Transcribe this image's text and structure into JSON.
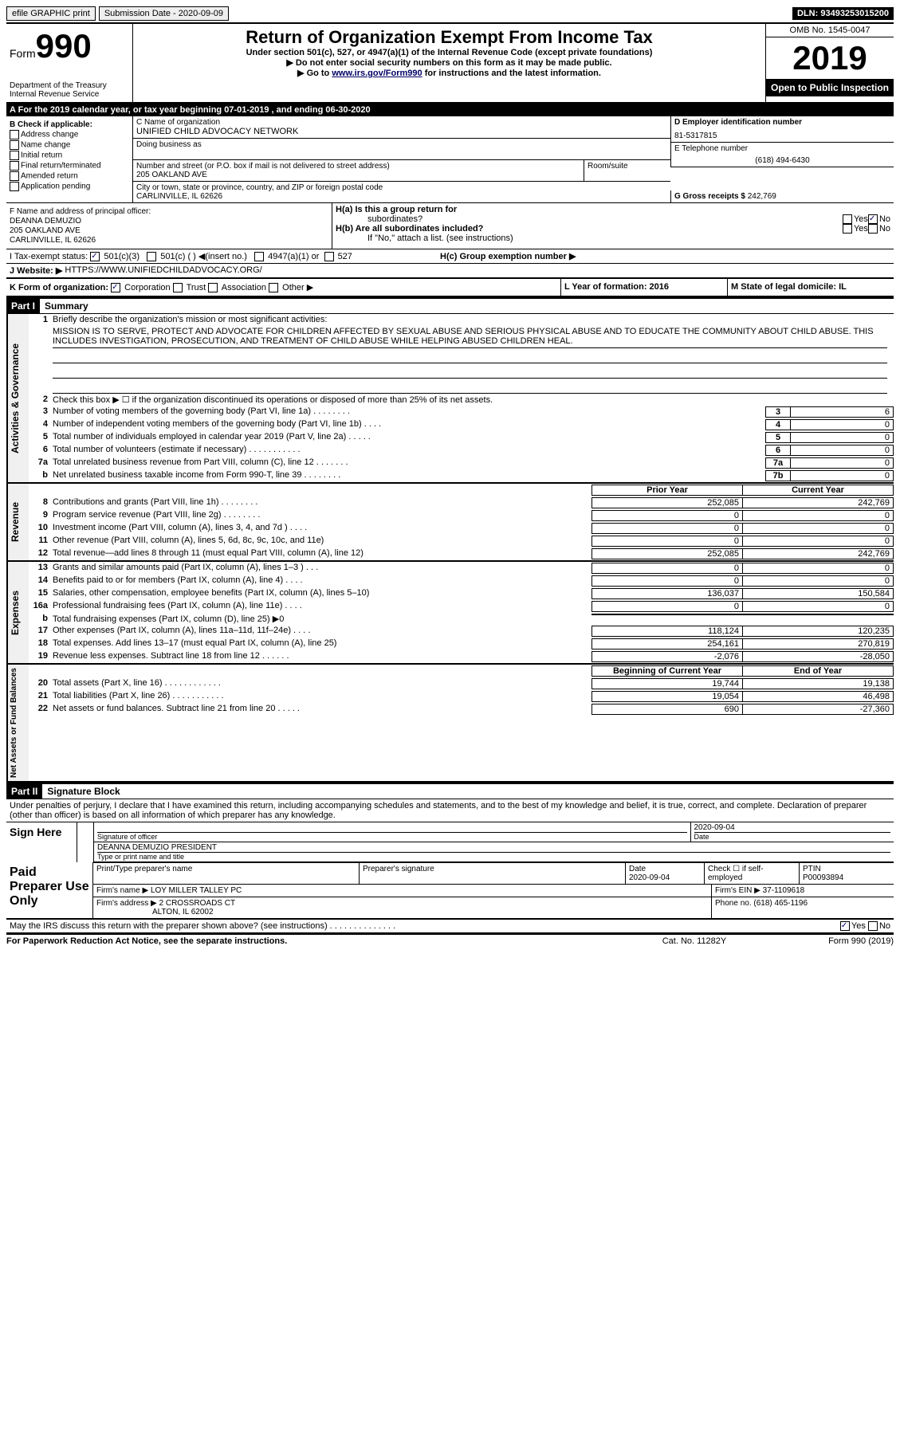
{
  "top": {
    "efile": "efile GRAPHIC print",
    "submission": "Submission Date - 2020-09-09",
    "dln": "DLN: 93493253015200"
  },
  "hdr": {
    "form": "Form",
    "num": "990",
    "omb": "OMB No. 1545-0047",
    "year": "2019",
    "title": "Return of Organization Exempt From Income Tax",
    "sub1": "Under section 501(c), 527, or 4947(a)(1) of the Internal Revenue Code (except private foundations)",
    "sub2": "▶ Do not enter social security numbers on this form as it may be made public.",
    "sub3pre": "▶ Go to ",
    "link": "www.irs.gov/Form990",
    "sub3post": " for instructions and the latest information.",
    "dept": "Department of the Treasury",
    "irs": "Internal Revenue Service",
    "open": "Open to Public Inspection"
  },
  "ty": {
    "text": "For the 2019 calendar year, or tax year beginning 07-01-2019   , and ending 06-30-2020"
  },
  "B": {
    "label": "B Check if applicable:",
    "items": [
      "Address change",
      "Name change",
      "Initial return",
      "Final return/terminated",
      "Amended return",
      "Application pending"
    ]
  },
  "C": {
    "namelabel": "C Name of organization",
    "name": "UNIFIED CHILD ADVOCACY NETWORK",
    "dba": "Doing business as",
    "addrlabel": "Number and street (or P.O. box if mail is not delivered to street address)",
    "room": "Room/suite",
    "addr": "205 OAKLAND AVE",
    "citylabel": "City or town, state or province, country, and ZIP or foreign postal code",
    "city": "CARLINVILLE, IL  62626"
  },
  "D": {
    "label": "D Employer identification number",
    "val": "81-5317815"
  },
  "E": {
    "label": "E Telephone number",
    "val": "(618) 494-6430"
  },
  "G": {
    "label": "G Gross receipts $",
    "val": "242,769"
  },
  "F": {
    "label": "F Name and address of principal officer:",
    "name": "DEANNA DEMUZIO",
    "addr": "205 OAKLAND AVE",
    "city": "CARLINVILLE, IL  62626"
  },
  "H": {
    "a": "H(a)  Is this a group return for",
    "a2": "subordinates?",
    "b": "H(b)  Are all subordinates included?",
    "note": "If \"No,\" attach a list. (see instructions)",
    "c": "H(c)  Group exemption number ▶",
    "yes": "Yes",
    "no": "No"
  },
  "I": {
    "label": "I   Tax-exempt status:",
    "c3": "501(c)(3)",
    "c": "501(c) (  ) ◀(insert no.)",
    "a1": "4947(a)(1) or",
    "s527": "527"
  },
  "J": {
    "label": "J   Website: ▶",
    "val": "HTTPS://WWW.UNIFIEDCHILDADVOCACY.ORG/"
  },
  "K": {
    "label": "K Form of organization:",
    "corp": "Corporation",
    "trust": "Trust",
    "assoc": "Association",
    "other": "Other ▶"
  },
  "L": {
    "label": "L Year of formation: 2016"
  },
  "M": {
    "label": "M State of legal domicile: IL"
  },
  "p1": {
    "num": "Part I",
    "title": "Summary"
  },
  "gov": {
    "l1": "Briefly describe the organization's mission or most significant activities:",
    "mission": "MISSION IS TO SERVE, PROTECT AND ADVOCATE FOR CHILDREN AFFECTED BY SEXUAL ABUSE AND SERIOUS PHYSICAL ABUSE AND TO EDUCATE THE COMMUNITY ABOUT CHILD ABUSE. THIS INCLUDES INVESTIGATION, PROSECUTION, AND TREATMENT OF CHILD ABUSE WHILE HELPING ABUSED CHILDREN HEAL.",
    "l2": "Check this box ▶ ☐  if the organization discontinued its operations or disposed of more than 25% of its net assets.",
    "rows": [
      {
        "n": "3",
        "t": "Number of voting members of the governing body (Part VI, line 1a)  .   .   .   .   .   .   .   .",
        "b": "3",
        "v": "6"
      },
      {
        "n": "4",
        "t": "Number of independent voting members of the governing body (Part VI, line 1b)  .   .   .   .",
        "b": "4",
        "v": "0"
      },
      {
        "n": "5",
        "t": "Total number of individuals employed in calendar year 2019 (Part V, line 2a)  .   .   .   .   .",
        "b": "5",
        "v": "0"
      },
      {
        "n": "6",
        "t": "Total number of volunteers (estimate if necessary)  .   .   .   .   .   .   .   .   .   .   .",
        "b": "6",
        "v": "0"
      },
      {
        "n": "7a",
        "t": "Total unrelated business revenue from Part VIII, column (C), line 12   .   .   .   .   .   .   .",
        "b": "7a",
        "v": "0"
      },
      {
        "n": "b",
        "t": "Net unrelated business taxable income from Form 990-T, line 39   .   .   .   .   .   .   .   .",
        "b": "7b",
        "v": "0"
      }
    ]
  },
  "rev": {
    "hdr": {
      "py": "Prior Year",
      "cy": "Current Year"
    },
    "rows": [
      {
        "n": "8",
        "t": "Contributions and grants (Part VIII, line 1h)  .   .   .   .   .   .   .   .",
        "py": "252,085",
        "cy": "242,769"
      },
      {
        "n": "9",
        "t": "Program service revenue (Part VIII, line 2g)  .   .   .   .   .   .   .   .",
        "py": "0",
        "cy": "0"
      },
      {
        "n": "10",
        "t": "Investment income (Part VIII, column (A), lines 3, 4, and 7d )  .   .   .   .",
        "py": "0",
        "cy": "0"
      },
      {
        "n": "11",
        "t": "Other revenue (Part VIII, column (A), lines 5, 6d, 8c, 9c, 10c, and 11e)",
        "py": "0",
        "cy": "0"
      },
      {
        "n": "12",
        "t": "Total revenue—add lines 8 through 11 (must equal Part VIII, column (A), line 12)",
        "py": "252,085",
        "cy": "242,769"
      }
    ]
  },
  "exp": {
    "rows": [
      {
        "n": "13",
        "t": "Grants and similar amounts paid (Part IX, column (A), lines 1–3 ) .   .   .",
        "py": "0",
        "cy": "0"
      },
      {
        "n": "14",
        "t": "Benefits paid to or for members (Part IX, column (A), line 4)  .   .   .   .",
        "py": "0",
        "cy": "0"
      },
      {
        "n": "15",
        "t": "Salaries, other compensation, employee benefits (Part IX, column (A), lines 5–10)",
        "py": "136,037",
        "cy": "150,584"
      },
      {
        "n": "16a",
        "t": "Professional fundraising fees (Part IX, column (A), line 11e)  .   .   .   .",
        "py": "0",
        "cy": "0"
      },
      {
        "n": "b",
        "t": "Total fundraising expenses (Part IX, column (D), line 25) ▶0",
        "py": "",
        "cy": "",
        "shade": true
      },
      {
        "n": "17",
        "t": "Other expenses (Part IX, column (A), lines 11a–11d, 11f–24e)  .   .   .   .",
        "py": "118,124",
        "cy": "120,235"
      },
      {
        "n": "18",
        "t": "Total expenses. Add lines 13–17 (must equal Part IX, column (A), line 25)",
        "py": "254,161",
        "cy": "270,819"
      },
      {
        "n": "19",
        "t": "Revenue less expenses. Subtract line 18 from line 12  .   .   .   .   .   .",
        "py": "-2,076",
        "cy": "-28,050"
      }
    ]
  },
  "net": {
    "hdr": {
      "py": "Beginning of Current Year",
      "cy": "End of Year"
    },
    "rows": [
      {
        "n": "20",
        "t": "Total assets (Part X, line 16)  .   .   .   .   .   .   .   .   .   .   .   .",
        "py": "19,744",
        "cy": "19,138"
      },
      {
        "n": "21",
        "t": "Total liabilities (Part X, line 26)  .   .   .   .   .   .   .   .   .   .   .",
        "py": "19,054",
        "cy": "46,498"
      },
      {
        "n": "22",
        "t": "Net assets or fund balances. Subtract line 21 from line 20  .   .   .   .   .",
        "py": "690",
        "cy": "-27,360"
      }
    ]
  },
  "p2": {
    "num": "Part II",
    "title": "Signature Block",
    "decl": "Under penalties of perjury, I declare that I have examined this return, including accompanying schedules and statements, and to the best of my knowledge and belief, it is true, correct, and complete. Declaration of preparer (other than officer) is based on all information of which preparer has any knowledge."
  },
  "sign": {
    "here": "Sign Here",
    "sigoff": "Signature of officer",
    "date": "Date",
    "dateval": "2020-09-04",
    "name": "DEANNA DEMUZIO PRESIDENT",
    "nametitle": "Type or print name and title"
  },
  "paid": {
    "label": "Paid Preparer Use Only",
    "h": [
      "Print/Type preparer's name",
      "Preparer's signature",
      "Date",
      "Check ☐ if self-employed",
      "PTIN"
    ],
    "r1": [
      "",
      "",
      "2020-09-04",
      "",
      "P00093894"
    ],
    "firmname": "Firm's name   ▶ LOY MILLER TALLEY PC",
    "firmein": "Firm's EIN ▶ 37-1109618",
    "firmaddr": "Firm's address ▶ 2 CROSSROADS CT",
    "firmcity": "ALTON, IL  62002",
    "phone": "Phone no. (618) 465-1196"
  },
  "discuss": {
    "q": "May the IRS discuss this return with the preparer shown above? (see instructions)  .   .   .   .   .   .   .   .   .   .   .   .   .   .",
    "yes": "Yes",
    "no": "No"
  },
  "foot": {
    "l": "For Paperwork Reduction Act Notice, see the separate instructions.",
    "m": "Cat. No. 11282Y",
    "r": "Form 990 (2019)"
  }
}
